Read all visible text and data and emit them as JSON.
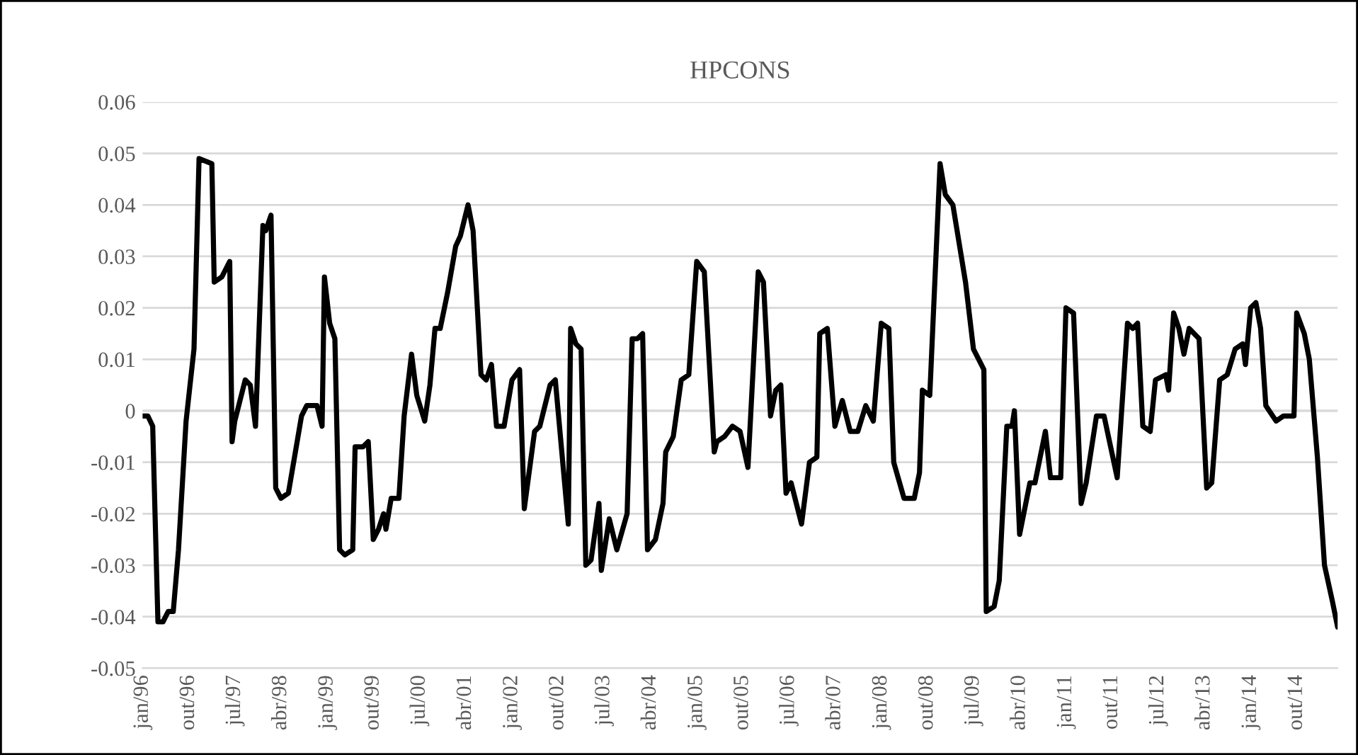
{
  "chart_data": {
    "type": "line",
    "title": "HPCONS",
    "x": [
      "1996-01",
      "1996-02",
      "1996-03",
      "1996-04",
      "1996-05",
      "1996-06",
      "1996-07",
      "1996-08",
      "1996-09-15",
      "1996-11",
      "1996-12",
      "1997-02-15",
      "1997-03",
      "1997-04-15",
      "1997-06",
      "1997-06-15",
      "1997-07",
      "1997-09",
      "1997-10",
      "1997-11",
      "1997-12-15",
      "1998-01",
      "1998-02",
      "1998-03",
      "1998-04",
      "1998-05-15",
      "1998-08",
      "1998-09",
      "1998-11",
      "1998-12",
      "1998-12-15",
      "1999-01-15",
      "1999-02-15",
      "1999-03-15",
      "1999-04-15",
      "1999-06",
      "1999-06-15",
      "1999-08",
      "1999-09",
      "1999-10",
      "1999-11",
      "1999-12",
      "1999-12-15",
      "2000-01-15",
      "2000-03",
      "2000-04",
      "2000-05-15",
      "2000-06-15",
      "2000-08",
      "2000-09",
      "2000-10",
      "2000-11",
      "2000-12-15",
      "2001-02",
      "2001-03",
      "2001-04-15",
      "2001-05-15",
      "2001-07",
      "2001-08",
      "2001-09",
      "2001-10",
      "2001-11-15",
      "2002-01",
      "2002-02-15",
      "2002-03-15",
      "2002-05-15",
      "2002-06-15",
      "2002-08-15",
      "2002-09-15",
      "2002-12",
      "2002-12-15",
      "2003-01-15",
      "2003-02-15",
      "2003-03-15",
      "2003-04-15",
      "2003-06",
      "2003-06-15",
      "2003-08",
      "2003-09-15",
      "2003-11-15",
      "2003-12-15",
      "2004-01-15",
      "2004-02-15",
      "2004-03-15",
      "2004-05",
      "2004-06-15",
      "2004-07",
      "2004-08-15",
      "2004-10",
      "2004-11-15",
      "2005-01",
      "2005-02-15",
      "2005-04-15",
      "2005-05",
      "2005-06-15",
      "2005-08",
      "2005-09-15",
      "2005-11",
      "2006-01",
      "2006-02",
      "2006-03-15",
      "2006-04-15",
      "2006-05-15",
      "2006-06-15",
      "2006-07-15",
      "2006-09-15",
      "2006-11",
      "2006-12-15",
      "2007-01",
      "2007-02-15",
      "2007-04",
      "2007-05-15",
      "2007-07",
      "2007-08-15",
      "2007-10",
      "2007-11-15",
      "2008-01",
      "2008-02-15",
      "2008-03-15",
      "2008-05-15",
      "2008-07-15",
      "2008-08-15",
      "2008-09",
      "2008-10-15",
      "2008-12-15",
      "2009-01-15",
      "2009-03",
      "2009-05-15",
      "2009-07",
      "2009-09",
      "2009-09-15",
      "2009-11",
      "2009-12",
      "2010-01-15",
      "2010-02-15",
      "2010-03",
      "2010-04",
      "2010-06",
      "2010-07",
      "2010-09",
      "2010-10",
      "2010-12",
      "2011-01",
      "2011-02-15",
      "2011-04",
      "2011-05",
      "2011-07",
      "2011-08-15",
      "2011-11",
      "2012-01",
      "2012-02",
      "2012-03",
      "2012-04",
      "2012-05-15",
      "2012-06-15",
      "2012-08-15",
      "2012-09",
      "2012-10",
      "2012-11",
      "2012-12",
      "2013-01",
      "2013-03",
      "2013-04-15",
      "2013-05-15",
      "2013-07",
      "2013-08-15",
      "2013-10",
      "2013-11-15",
      "2013-12",
      "2014-01",
      "2014-02",
      "2014-03",
      "2014-04",
      "2014-06",
      "2014-07-15",
      "2014-09-15",
      "2014-10",
      "2014-11-15",
      "2014-12-15",
      "2015-02",
      "2015-03-15",
      "2015-05",
      "2015-06"
    ],
    "series": [
      {
        "color": "#000000",
        "values": [
          -0.001,
          -0.001,
          -0.003,
          -0.041,
          -0.041,
          -0.039,
          -0.039,
          -0.027,
          -0.002,
          0.012,
          0.049,
          0.048,
          0.025,
          0.026,
          0.029,
          -0.006,
          -0.002,
          0.006,
          0.005,
          -0.003,
          0.036,
          0.035,
          0.038,
          -0.015,
          -0.017,
          -0.016,
          -0.001,
          0.001,
          0.001,
          -0.003,
          0.026,
          0.017,
          0.014,
          -0.027,
          -0.028,
          -0.027,
          -0.007,
          -0.007,
          -0.006,
          -0.025,
          -0.023,
          -0.02,
          -0.023,
          -0.017,
          -0.017,
          -0.001,
          0.011,
          0.003,
          -0.002,
          0.005,
          0.016,
          0.016,
          0.023,
          0.032,
          0.034,
          0.04,
          0.035,
          0.007,
          0.006,
          0.009,
          -0.003,
          -0.003,
          0.006,
          0.008,
          -0.019,
          -0.004,
          -0.003,
          0.005,
          0.006,
          -0.022,
          0.016,
          0.013,
          0.012,
          -0.03,
          -0.029,
          -0.018,
          -0.031,
          -0.021,
          -0.027,
          -0.02,
          0.014,
          0.014,
          0.015,
          -0.027,
          -0.025,
          -0.018,
          -0.008,
          -0.005,
          0.006,
          0.007,
          0.029,
          0.027,
          -0.008,
          -0.006,
          -0.005,
          -0.003,
          -0.004,
          -0.011,
          0.027,
          0.025,
          -0.001,
          0.004,
          0.005,
          -0.016,
          -0.014,
          -0.022,
          -0.01,
          -0.009,
          0.015,
          0.016,
          -0.003,
          0.002,
          -0.004,
          -0.004,
          0.001,
          -0.002,
          0.017,
          0.016,
          -0.01,
          -0.017,
          -0.017,
          -0.012,
          0.004,
          0.003,
          0.048,
          0.042,
          0.04,
          0.025,
          0.012,
          0.008,
          -0.039,
          -0.038,
          -0.033,
          -0.003,
          -0.003,
          0.0,
          -0.024,
          -0.014,
          -0.014,
          -0.004,
          -0.013,
          -0.013,
          0.02,
          0.019,
          -0.018,
          -0.014,
          -0.001,
          -0.001,
          -0.013,
          0.017,
          0.016,
          0.017,
          -0.003,
          -0.004,
          0.006,
          0.007,
          0.004,
          0.019,
          0.016,
          0.011,
          0.016,
          0.014,
          -0.015,
          -0.014,
          0.006,
          0.007,
          0.012,
          0.013,
          0.009,
          0.02,
          0.021,
          0.016,
          0.001,
          -0.002,
          -0.001,
          -0.001,
          0.019,
          0.015,
          0.01,
          -0.009,
          -0.03,
          -0.037,
          -0.042
        ]
      }
    ],
    "xlim": [
      "1996-01",
      "2015-06"
    ],
    "xticks": [
      {
        "value": "1996-01",
        "label": "jan/96"
      },
      {
        "value": "1996-10",
        "label": "out/96"
      },
      {
        "value": "1997-07",
        "label": "jul/97"
      },
      {
        "value": "1998-04",
        "label": "abr/98"
      },
      {
        "value": "1999-01",
        "label": "jan/99"
      },
      {
        "value": "1999-10",
        "label": "out/99"
      },
      {
        "value": "2000-07",
        "label": "jul/00"
      },
      {
        "value": "2001-04",
        "label": "abr/01"
      },
      {
        "value": "2002-01",
        "label": "jan/02"
      },
      {
        "value": "2002-10",
        "label": "out/02"
      },
      {
        "value": "2003-07",
        "label": "jul/03"
      },
      {
        "value": "2004-04",
        "label": "abr/04"
      },
      {
        "value": "2005-01",
        "label": "jan/05"
      },
      {
        "value": "2005-10",
        "label": "out/05"
      },
      {
        "value": "2006-07",
        "label": "jul/06"
      },
      {
        "value": "2007-04",
        "label": "abr/07"
      },
      {
        "value": "2008-01",
        "label": "jan/08"
      },
      {
        "value": "2008-10",
        "label": "out/08"
      },
      {
        "value": "2009-07",
        "label": "jul/09"
      },
      {
        "value": "2010-04",
        "label": "abr/10"
      },
      {
        "value": "2011-01",
        "label": "jan/11"
      },
      {
        "value": "2011-10",
        "label": "out/11"
      },
      {
        "value": "2012-07",
        "label": "jul/12"
      },
      {
        "value": "2013-04",
        "label": "abr/13"
      },
      {
        "value": "2014-01",
        "label": "jan/14"
      },
      {
        "value": "2014-10",
        "label": "out/14"
      }
    ],
    "ylim": [
      -0.05,
      0.06
    ],
    "yticks": [
      -0.05,
      -0.04,
      -0.03,
      -0.02,
      -0.01,
      0,
      0.01,
      0.02,
      0.03,
      0.04,
      0.05,
      0.06
    ],
    "grid": "y",
    "legend": false,
    "marker": "none",
    "line_style": "solid"
  }
}
